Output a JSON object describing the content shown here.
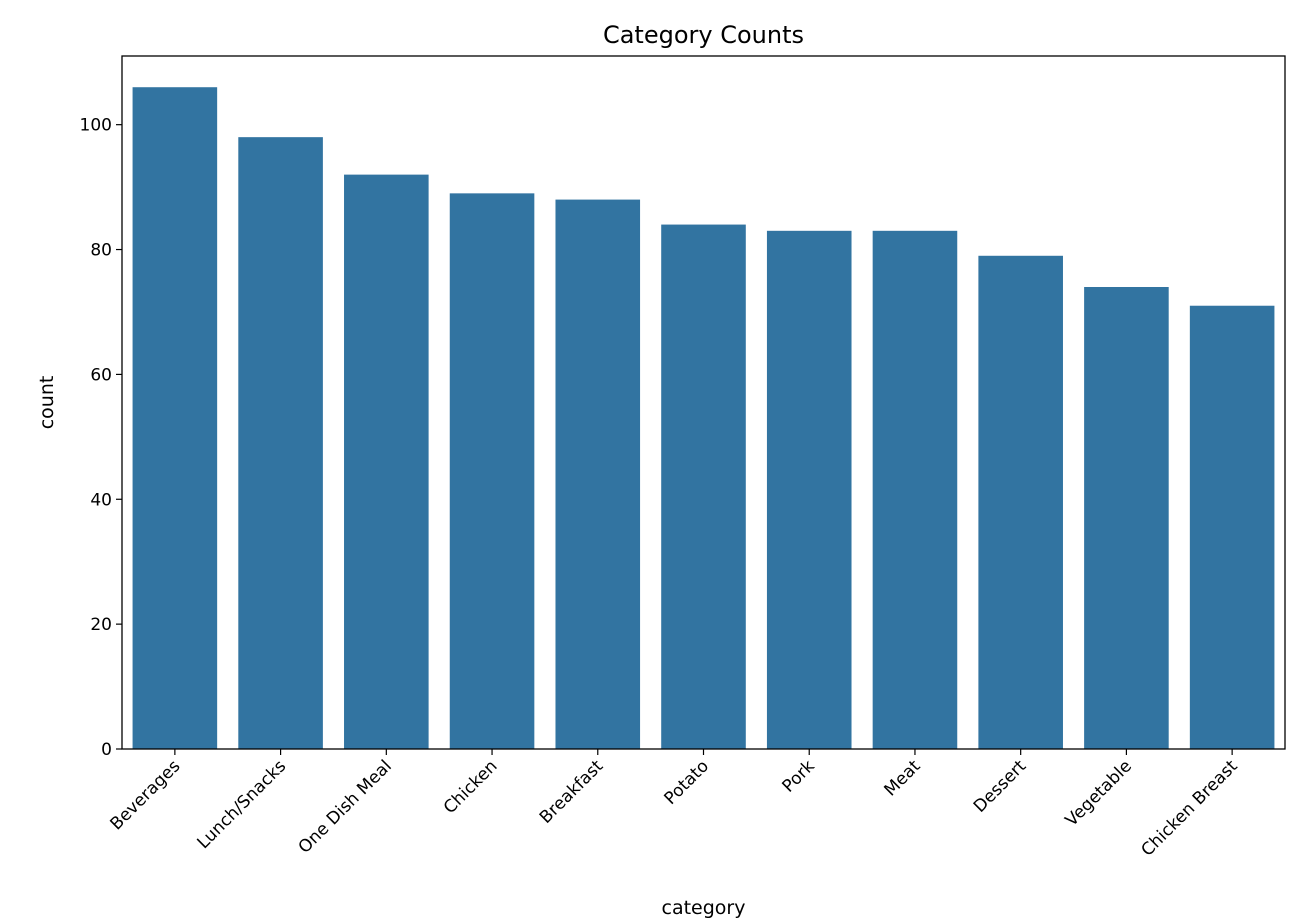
{
  "chart_data": {
    "type": "bar",
    "title": "Category Counts",
    "xlabel": "category",
    "ylabel": "count",
    "categories": [
      "Beverages",
      "Lunch/Snacks",
      "One Dish Meal",
      "Chicken",
      "Breakfast",
      "Potato",
      "Pork",
      "Meat",
      "Dessert",
      "Vegetable",
      "Chicken Breast"
    ],
    "values": [
      106,
      98,
      92,
      89,
      88,
      84,
      83,
      83,
      79,
      74,
      71
    ],
    "ylim": [
      0,
      111
    ],
    "yticks": [
      0,
      20,
      40,
      60,
      80,
      100
    ],
    "ytick_labels": [
      "0",
      "20",
      "40",
      "60",
      "80",
      "100"
    ],
    "bar_color": "#3274a1",
    "grid": false,
    "legend": "none"
  }
}
